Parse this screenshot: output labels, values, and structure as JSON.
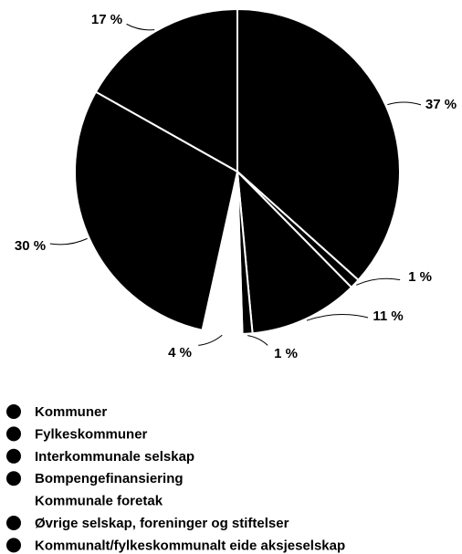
{
  "chart_data": {
    "type": "pie",
    "categories": [
      "Kommuner",
      "Fylkeskommuner",
      "Interkommunale selskap",
      "Bompengefinansiering",
      "Kommunale foretak",
      "Øvrige selskap, foreninger og stiftelser",
      "Kommunalt/fylkeskommunalt eide aksjeselskap"
    ],
    "values": [
      37,
      1,
      11,
      1,
      4,
      30,
      17
    ],
    "value_labels": [
      "37 %",
      "1 %",
      "11 %",
      "1 %",
      "4 %",
      "30 %",
      "17 %"
    ],
    "colors": [
      "#000000",
      "#000000",
      "#000000",
      "#000000",
      "#ffffff",
      "#000000",
      "#000000"
    ]
  }
}
